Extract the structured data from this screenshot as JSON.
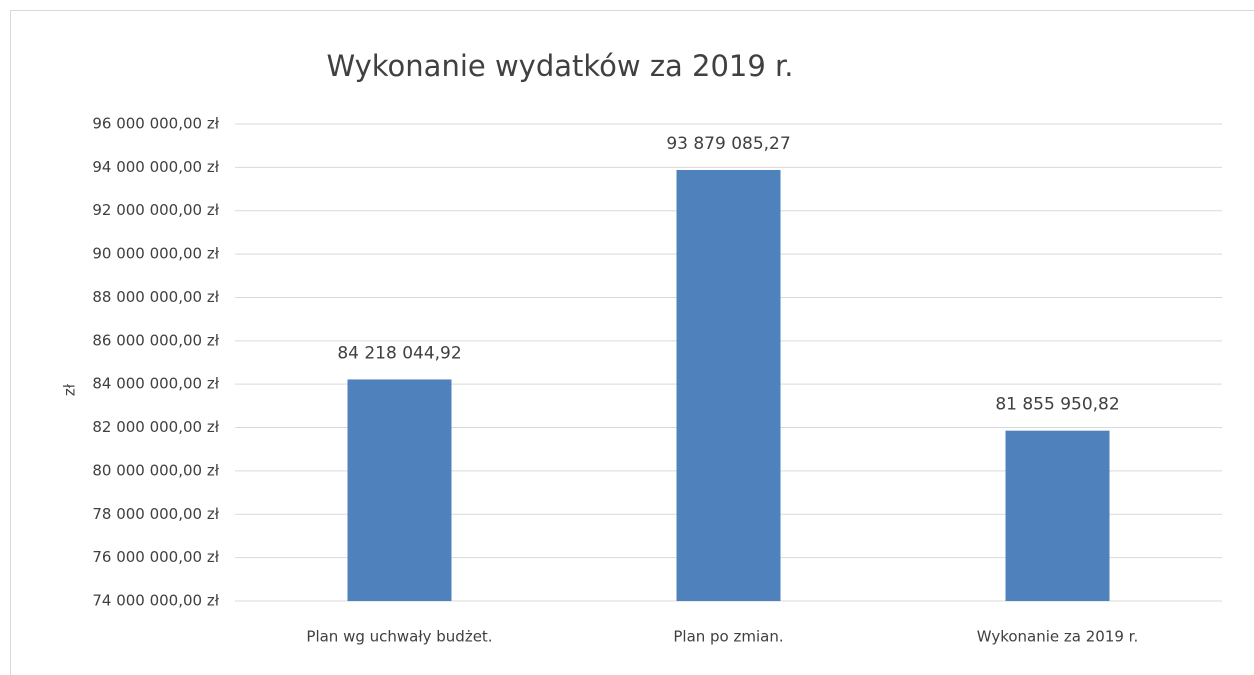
{
  "chart_data": {
    "type": "bar",
    "title": "Wykonanie wydatków za 2019 r.",
    "y_label": "zł",
    "categories": [
      "Plan wg uchwały budżet.",
      "Plan po zmian.",
      "Wykonanie za 2019 r."
    ],
    "values": [
      84218044.92,
      93879085.27,
      81855950.82
    ],
    "value_labels": [
      "84 218 044,92",
      "93 879 085,27",
      "81 855 950,82"
    ],
    "color": "#4f81bd",
    "ylim": [
      74000000,
      96000000
    ],
    "yticks": [
      {
        "value": 74000000,
        "label": "74 000 000,00 zł"
      },
      {
        "value": 76000000,
        "label": "76 000 000,00 zł"
      },
      {
        "value": 78000000,
        "label": "78 000 000,00 zł"
      },
      {
        "value": 80000000,
        "label": "80 000 000,00 zł"
      },
      {
        "value": 82000000,
        "label": "82 000 000,00 zł"
      },
      {
        "value": 84000000,
        "label": "84 000 000,00 zł"
      },
      {
        "value": 86000000,
        "label": "86 000 000,00 zł"
      },
      {
        "value": 88000000,
        "label": "88 000 000,00 zł"
      },
      {
        "value": 90000000,
        "label": "90 000 000,00 zł"
      },
      {
        "value": 92000000,
        "label": "92 000 000,00 zł"
      },
      {
        "value": 94000000,
        "label": "94 000 000,00 zł"
      },
      {
        "value": 96000000,
        "label": "96 000 000,00 zł"
      }
    ],
    "grid": true
  }
}
